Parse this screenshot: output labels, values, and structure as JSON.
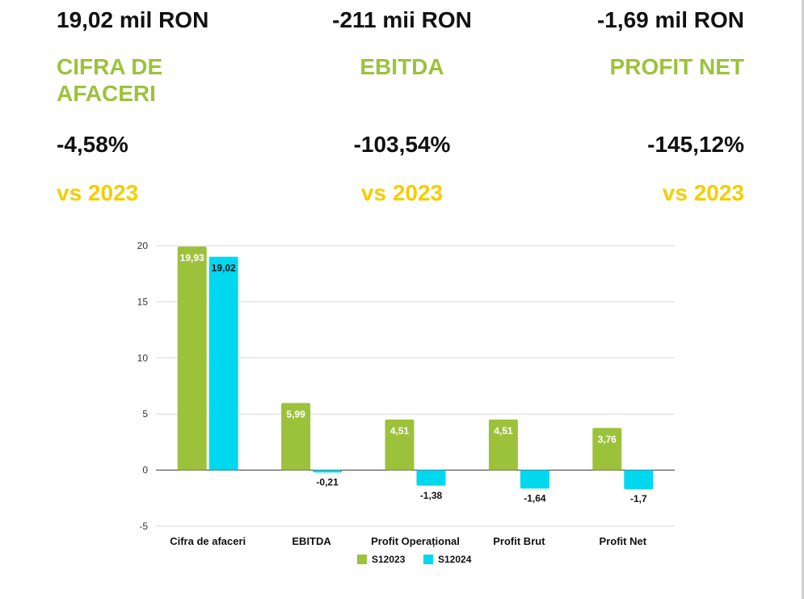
{
  "colors": {
    "green": "#9cc23c",
    "cyan": "#00d8f0",
    "yellow": "#f5cd00",
    "text": "#111111",
    "grid": "#d9d9d9"
  },
  "kpis": [
    {
      "value": "19,02 mil RON",
      "label_line1": "CIFRA DE",
      "label_line2": "AFACERI",
      "change": "-4,58%",
      "vs": "vs 2023"
    },
    {
      "value": "-211 mii RON",
      "label_line1": "EBITDA",
      "label_line2": "",
      "change": "-103,54%",
      "vs": "vs 2023"
    },
    {
      "value": "-1,69 mil RON",
      "label_line1": "PROFIT NET",
      "label_line2": "",
      "change": "-145,12%",
      "vs": "vs 2023"
    }
  ],
  "chart_data": {
    "type": "bar",
    "categories": [
      "Cifra de afaceri",
      "EBITDA",
      "Profit Operațional",
      "Profit Brut",
      "Profit Net"
    ],
    "series": [
      {
        "name": "S12023",
        "values": [
          19.93,
          5.99,
          4.51,
          4.51,
          3.76
        ],
        "labels": [
          "19,93",
          "5,99",
          "4,51",
          "4,51",
          "3,76"
        ]
      },
      {
        "name": "S12024",
        "values": [
          19.02,
          -0.21,
          -1.38,
          -1.64,
          -1.7
        ],
        "labels": [
          "19,02",
          "-0,21",
          "-1,38",
          "-1,64",
          "-1,7"
        ]
      }
    ],
    "ylim": [
      -5,
      20
    ],
    "yticks": [
      -5,
      0,
      5,
      10,
      15,
      20
    ],
    "ytick_labels": [
      "-5",
      "0",
      "5",
      "10",
      "15",
      "20"
    ],
    "legend": "bottom-center",
    "grid": true
  }
}
